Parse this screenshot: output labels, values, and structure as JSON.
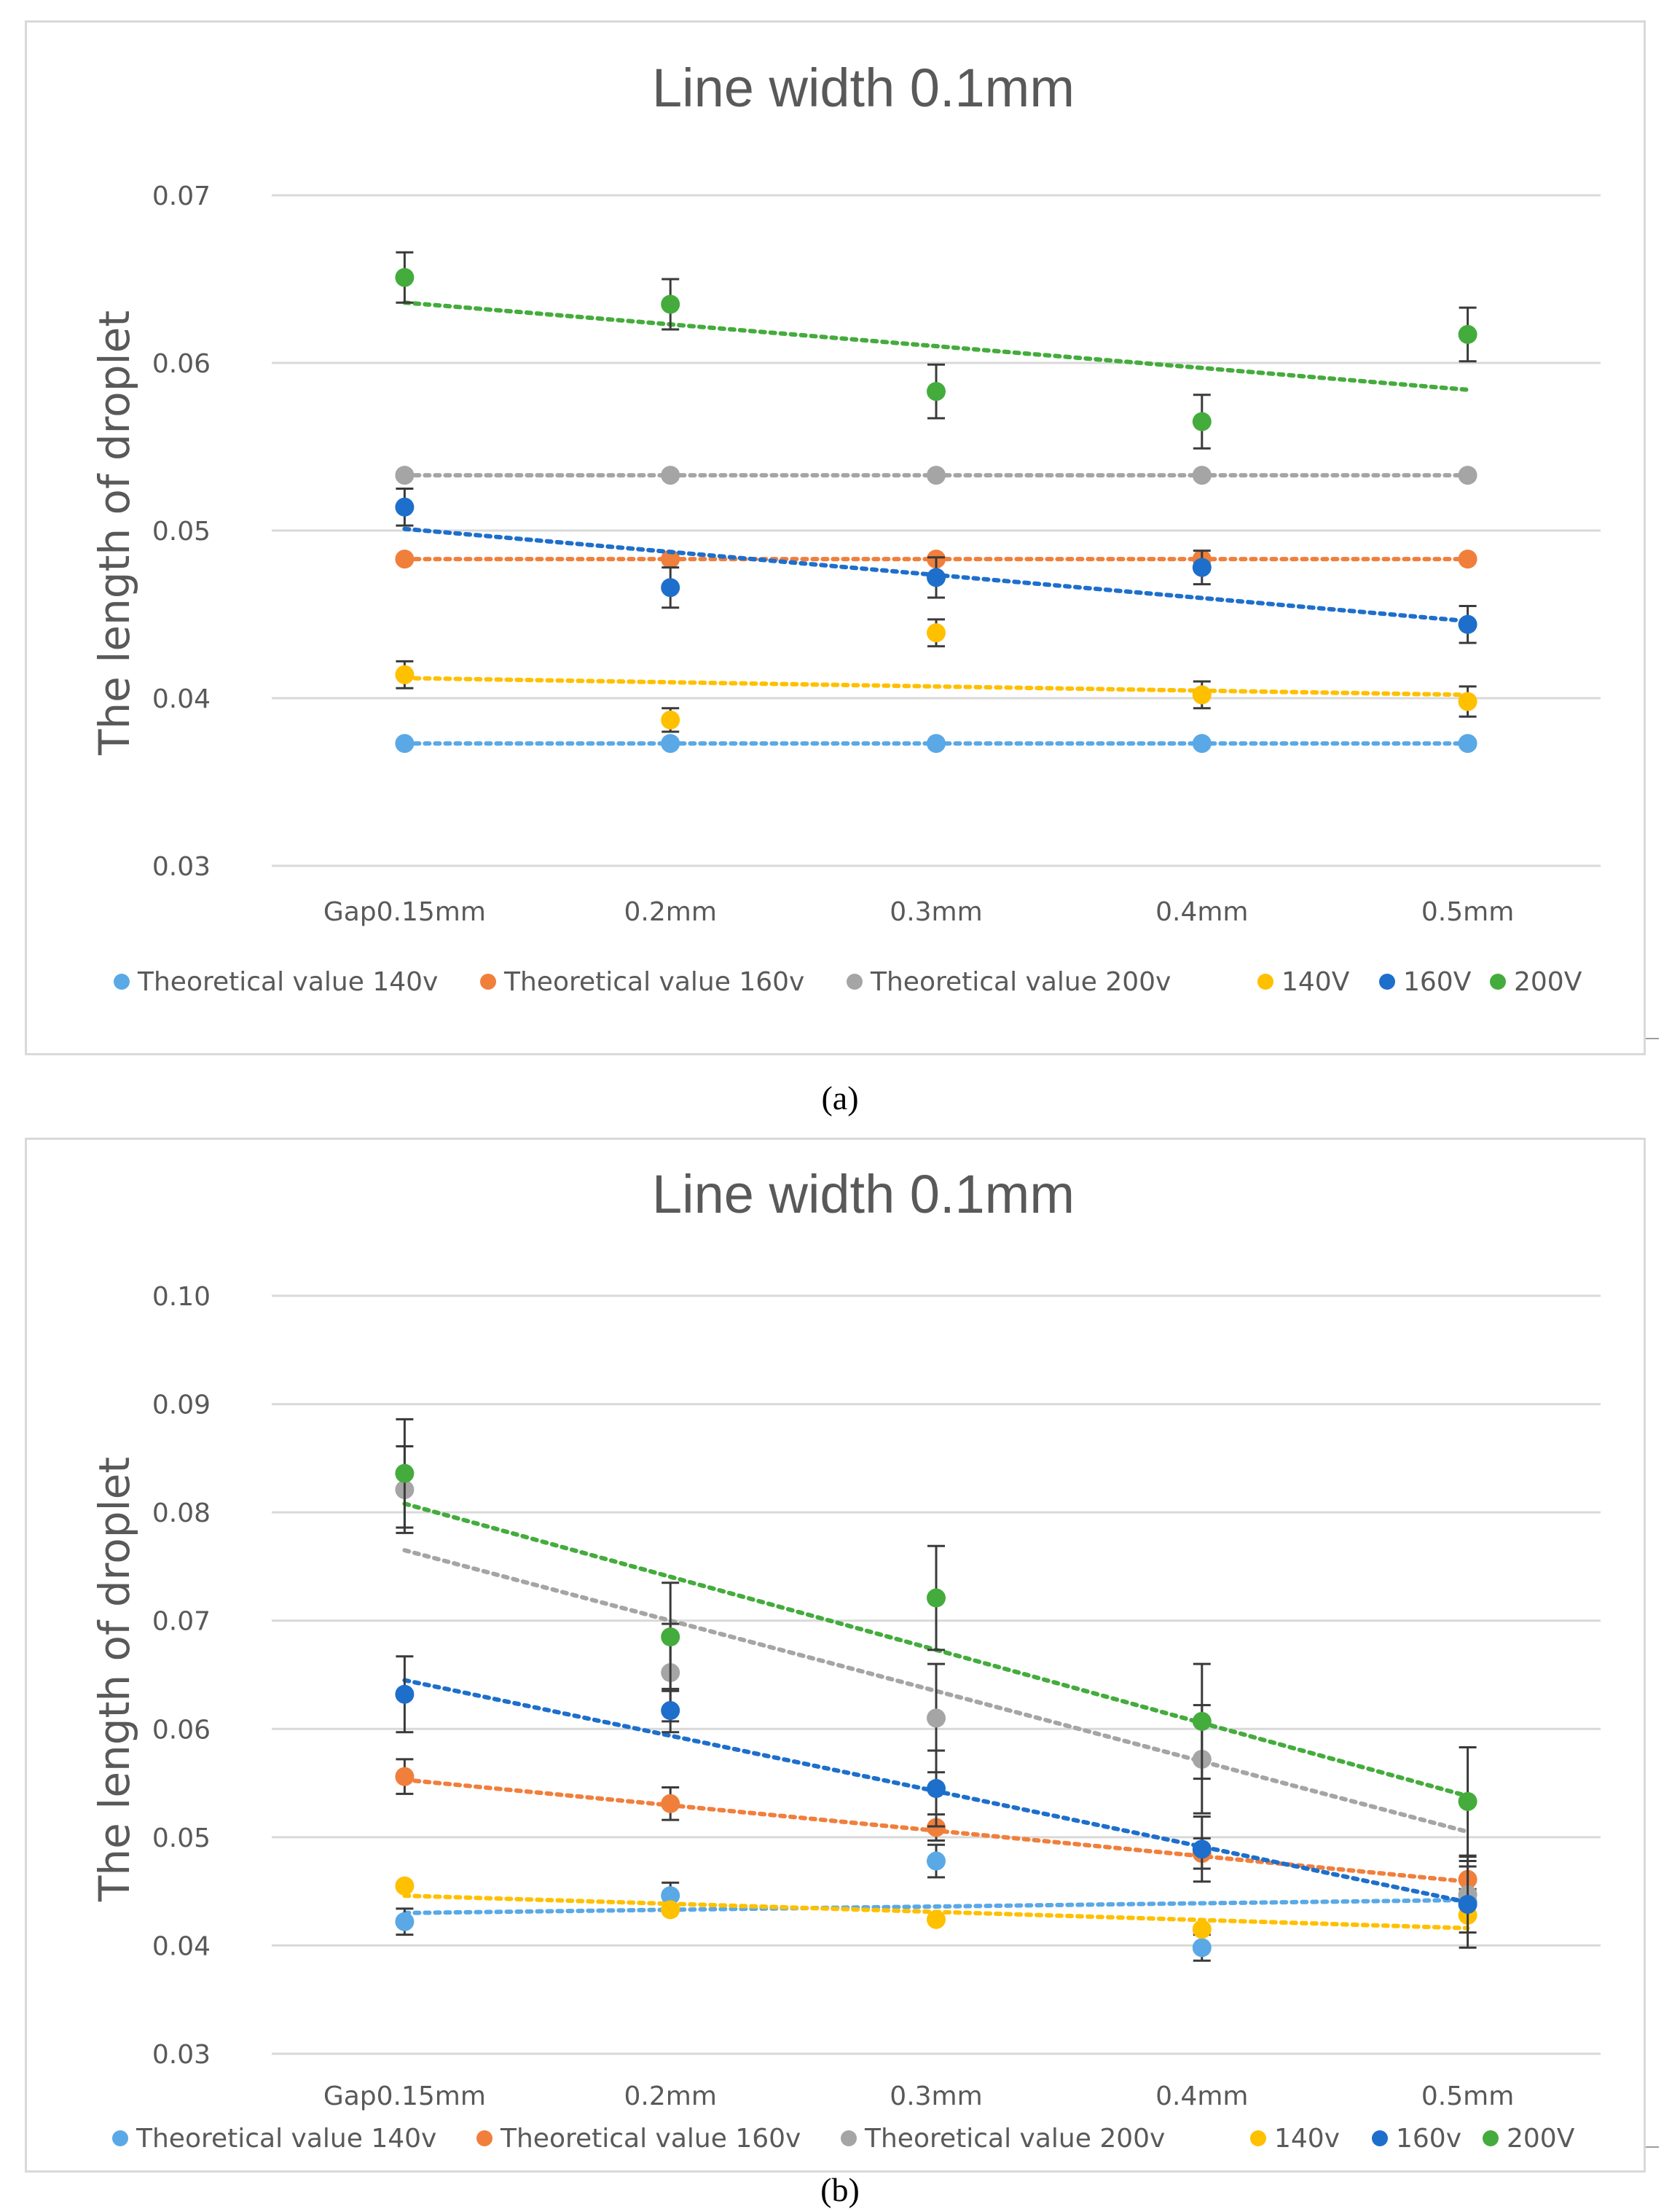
{
  "chart_data": [
    {
      "type": "scatter",
      "title": "Line width 0.1mm",
      "xlabel": "",
      "ylabel": "The length of droplet",
      "categories": [
        "Gap0.15mm",
        "0.2mm",
        "0.3mm",
        "0.4mm",
        "0.5mm"
      ],
      "ylim": [
        0.03,
        0.07
      ],
      "yticks": [
        "0.03",
        "0.04",
        "0.05",
        "0.06",
        "0.07"
      ],
      "grid": true,
      "legend_position": "bottom",
      "series": [
        {
          "name": "Theoretical value 140v",
          "color": "#5aa9e6",
          "values": [
            0.0373,
            0.0373,
            0.0373,
            0.0373,
            0.0373
          ],
          "errors": null,
          "trend": [
            0.0373,
            0.0373
          ]
        },
        {
          "name": "Theoretical value 160v",
          "color": "#f07f3c",
          "values": [
            0.0483,
            0.0483,
            0.0483,
            0.0483,
            0.0483
          ],
          "errors": null,
          "trend": [
            0.0483,
            0.0483
          ]
        },
        {
          "name": "Theoretical value 200v",
          "color": "#a5a5a5",
          "values": [
            0.0533,
            0.0533,
            0.0533,
            0.0533,
            0.0533
          ],
          "errors": null,
          "trend": [
            0.0533,
            0.0533
          ]
        },
        {
          "name": "140V",
          "color": "#ffc000",
          "values": [
            0.0414,
            0.0387,
            0.0439,
            0.0402,
            0.0398
          ],
          "errors": [
            0.0008,
            0.0007,
            0.0008,
            0.0008,
            0.0009
          ],
          "trend": [
            0.0412,
            0.0402
          ]
        },
        {
          "name": "160V",
          "color": "#1e6fcc",
          "values": [
            0.0514,
            0.0466,
            0.0472,
            0.0478,
            0.0444
          ],
          "errors": [
            0.0011,
            0.0012,
            0.0012,
            0.001,
            0.0011
          ],
          "trend": [
            0.0501,
            0.0446
          ]
        },
        {
          "name": "200V",
          "color": "#44ac3c",
          "values": [
            0.0651,
            0.0635,
            0.0583,
            0.0565,
            0.0617
          ],
          "errors": [
            0.0015,
            0.0015,
            0.0016,
            0.0016,
            0.0016
          ],
          "trend": [
            0.0636,
            0.0584
          ]
        }
      ]
    },
    {
      "type": "scatter",
      "title": "Line width 0.1mm",
      "xlabel": "",
      "ylabel": "The length of droplet",
      "categories": [
        "Gap0.15mm",
        "0.2mm",
        "0.3mm",
        "0.4mm",
        "0.5mm"
      ],
      "ylim": [
        0.03,
        0.1
      ],
      "yticks": [
        "0.03",
        "0.04",
        "0.05",
        "0.06",
        "0.07",
        "0.08",
        "0.09",
        "0.10"
      ],
      "grid": true,
      "legend_position": "bottom",
      "series": [
        {
          "name": "Theoretical value 140v",
          "color": "#5aa9e6",
          "values": [
            0.0422,
            0.0446,
            0.0478,
            0.0398,
            0.044
          ],
          "errors": [
            0.0012,
            0.0012,
            0.0015,
            0.0012,
            0.0012
          ],
          "trend": [
            0.043,
            0.0442
          ]
        },
        {
          "name": "Theoretical value 160v",
          "color": "#f07f3c",
          "values": [
            0.0556,
            0.0531,
            0.0509,
            0.0485,
            0.0461
          ],
          "errors": [
            0.0016,
            0.0015,
            0.0012,
            0.0014,
            0.0012
          ],
          "trend": [
            0.0553,
            0.0459
          ]
        },
        {
          "name": "Theoretical value 200v",
          "color": "#a5a5a5",
          "values": [
            0.0821,
            0.0652,
            0.061,
            0.0572,
            0.0447
          ],
          "errors": [
            0.004,
            0.0045,
            0.005,
            0.005,
            0.0035
          ],
          "trend": [
            0.0765,
            0.0505
          ]
        },
        {
          "name": "140v",
          "color": "#ffc000",
          "values": [
            0.0455,
            0.0433,
            0.0424,
            0.0415,
            0.0428
          ],
          "errors": null,
          "trend": [
            0.0446,
            0.0416
          ]
        },
        {
          "name": "160v",
          "color": "#1e6fcc",
          "values": [
            0.0632,
            0.0617,
            0.0545,
            0.0489,
            0.0438
          ],
          "errors": [
            0.0035,
            0.002,
            0.0035,
            0.003,
            0.004
          ],
          "trend": [
            0.0645,
            0.044
          ]
        },
        {
          "name": "200V",
          "color": "#44ac3c",
          "values": [
            0.0836,
            0.0685,
            0.0721,
            0.0607,
            0.0533
          ],
          "errors": [
            0.005,
            0.005,
            0.0048,
            0.0053,
            0.005
          ],
          "trend": [
            0.0808,
            0.0538
          ]
        }
      ]
    }
  ],
  "captions": [
    "(a)",
    "(b)"
  ]
}
